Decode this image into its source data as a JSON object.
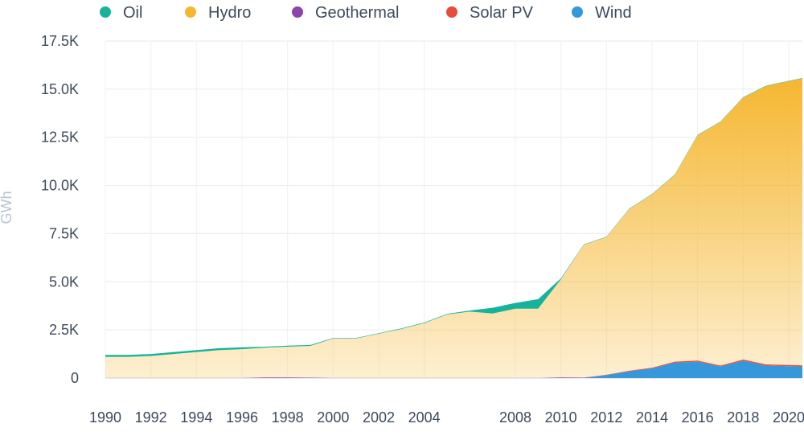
{
  "chart_data": {
    "type": "area",
    "stacked": true,
    "ylabel": "GWh",
    "ylim": [
      0,
      17500
    ],
    "xlim": [
      1990,
      2020.6
    ],
    "yticks": [
      {
        "value": 0,
        "label": "0"
      },
      {
        "value": 2500,
        "label": "2.5K"
      },
      {
        "value": 5000,
        "label": "5.0K"
      },
      {
        "value": 7500,
        "label": "7.5K"
      },
      {
        "value": 10000,
        "label": "10.0K"
      },
      {
        "value": 12500,
        "label": "12.5K"
      },
      {
        "value": 15000,
        "label": "15.0K"
      },
      {
        "value": 17500,
        "label": "17.5K"
      }
    ],
    "xticks": [
      {
        "value": 1990,
        "label": "1990"
      },
      {
        "value": 1992,
        "label": "1992"
      },
      {
        "value": 1994,
        "label": "1994"
      },
      {
        "value": 1996,
        "label": "1996"
      },
      {
        "value": 1998,
        "label": "1998"
      },
      {
        "value": 2000,
        "label": "2000"
      },
      {
        "value": 2002,
        "label": "2002"
      },
      {
        "value": 2004,
        "label": "2004"
      },
      {
        "value": 2008,
        "label": "2008"
      },
      {
        "value": 2010,
        "label": "2010"
      },
      {
        "value": 2012,
        "label": "2012"
      },
      {
        "value": 2014,
        "label": "2014"
      },
      {
        "value": 2016,
        "label": "2016"
      },
      {
        "value": 2018,
        "label": "2018"
      },
      {
        "value": 2020,
        "label": "2020"
      }
    ],
    "x": [
      1990,
      1991,
      1992,
      1993,
      1994,
      1995,
      1996,
      1997,
      1998,
      1999,
      2000,
      2001,
      2002,
      2003,
      2004,
      2005,
      2006,
      2007,
      2008,
      2009,
      2010,
      2011,
      2012,
      2013,
      2014,
      2015,
      2016,
      2017,
      2018,
      2019,
      2020.6
    ],
    "legend_position": "top",
    "grid": true,
    "series": [
      {
        "name": "Wind",
        "color": "#3498db",
        "values": [
          0,
          0,
          0,
          0,
          0,
          0,
          0,
          0,
          0,
          0,
          0,
          0,
          0,
          0,
          0,
          0,
          0,
          0,
          0,
          0,
          0,
          0,
          150,
          350,
          500,
          800,
          850,
          600,
          900,
          650,
          600
        ]
      },
      {
        "name": "Solar PV",
        "color": "#e74c3c",
        "values": [
          0,
          0,
          0,
          0,
          0,
          0,
          0,
          0,
          0,
          0,
          0,
          0,
          0,
          0,
          0,
          0,
          0,
          0,
          0,
          0,
          0,
          0,
          20,
          30,
          40,
          50,
          60,
          50,
          60,
          60,
          60
        ]
      },
      {
        "name": "Geothermal",
        "color": "#8e44ad",
        "values": [
          0,
          0,
          0,
          0,
          0,
          0,
          0,
          30,
          30,
          20,
          0,
          0,
          0,
          0,
          0,
          0,
          0,
          0,
          0,
          0,
          30,
          20,
          0,
          0,
          0,
          0,
          0,
          0,
          0,
          0,
          0
        ]
      },
      {
        "name": "Hydro",
        "color": "#f5b731",
        "values": [
          1100,
          1100,
          1150,
          1250,
          1350,
          1450,
          1500,
          1550,
          1600,
          1650,
          2050,
          2050,
          2300,
          2550,
          2850,
          3300,
          3450,
          3350,
          3600,
          3600,
          5100,
          6900,
          7150,
          8400,
          9000,
          9700,
          11700,
          12650,
          13600,
          14450,
          14900
        ]
      },
      {
        "name": "Oil",
        "color": "#16b39a",
        "values": [
          100,
          100,
          100,
          100,
          100,
          100,
          100,
          50,
          50,
          50,
          30,
          30,
          30,
          30,
          30,
          30,
          60,
          300,
          300,
          500,
          50,
          20,
          20,
          20,
          20,
          20,
          20,
          20,
          20,
          20,
          20
        ]
      }
    ],
    "legend_order": [
      "Oil",
      "Hydro",
      "Geothermal",
      "Solar PV",
      "Wind"
    ]
  }
}
